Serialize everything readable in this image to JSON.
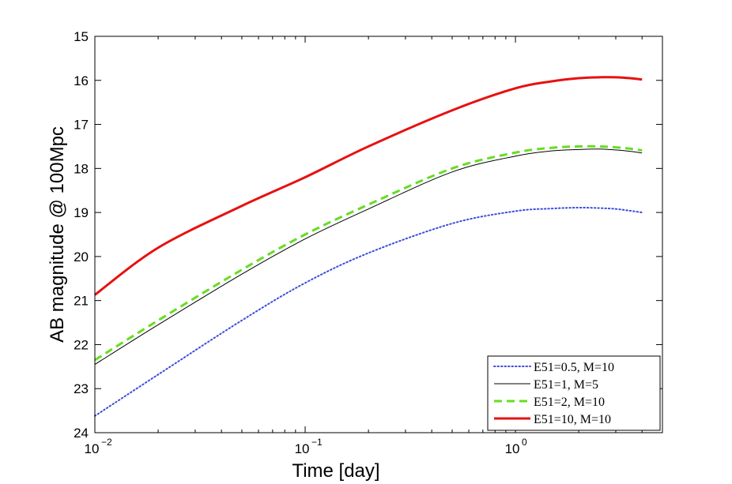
{
  "chart_data": {
    "type": "line",
    "xlabel": "Time [day]",
    "ylabel": "AB magnitude @ 100Mpc",
    "xscale": "log",
    "xlim": [
      0.01,
      5
    ],
    "ylim": [
      15,
      24
    ],
    "yreversed": true,
    "xticks": [
      {
        "value": 0.01,
        "base": "10",
        "exp": "−2"
      },
      {
        "value": 0.1,
        "base": "10",
        "exp": "−1"
      },
      {
        "value": 1,
        "base": "10",
        "exp": "0"
      }
    ],
    "yticks": [
      "15",
      "16",
      "17",
      "18",
      "19",
      "20",
      "21",
      "22",
      "23",
      "24"
    ],
    "legend_position": "bottom-right",
    "series": [
      {
        "name": "E51=0.5, M=10",
        "color": "#3a4cdb",
        "style": "dotted",
        "x": [
          0.01,
          0.02,
          0.05,
          0.1,
          0.2,
          0.5,
          1.0,
          1.5,
          2.0,
          2.5,
          3.0,
          3.5,
          4.0
        ],
        "y": [
          23.62,
          22.68,
          21.45,
          20.6,
          19.92,
          19.25,
          18.97,
          18.91,
          18.89,
          18.9,
          18.92,
          18.96,
          19.0
        ]
      },
      {
        "name": "E51=1, M=5",
        "color": "#000000",
        "style": "solid",
        "x": [
          0.01,
          0.02,
          0.05,
          0.1,
          0.2,
          0.5,
          1.0,
          1.5,
          2.0,
          2.5,
          3.0,
          3.5,
          4.0
        ],
        "y": [
          22.45,
          21.55,
          20.4,
          19.6,
          18.92,
          18.08,
          17.72,
          17.6,
          17.57,
          17.56,
          17.58,
          17.61,
          17.65
        ]
      },
      {
        "name": "E51=2, M=10",
        "color": "#66dd22",
        "style": "dashed",
        "x": [
          0.01,
          0.02,
          0.05,
          0.1,
          0.2,
          0.5,
          1.0,
          1.5,
          2.0,
          2.5,
          3.0,
          3.5,
          4.0
        ],
        "y": [
          22.35,
          21.45,
          20.3,
          19.5,
          18.82,
          18.0,
          17.64,
          17.53,
          17.5,
          17.5,
          17.52,
          17.55,
          17.59
        ]
      },
      {
        "name": "E51=10, M=10",
        "color": "#e81010",
        "style": "solid-thick",
        "x": [
          0.01,
          0.02,
          0.05,
          0.1,
          0.2,
          0.5,
          1.0,
          1.5,
          2.0,
          2.5,
          3.0,
          3.5,
          4.0
        ],
        "y": [
          20.87,
          19.8,
          18.85,
          18.2,
          17.5,
          16.68,
          16.18,
          16.02,
          15.95,
          15.93,
          15.93,
          15.95,
          15.98
        ]
      }
    ]
  }
}
